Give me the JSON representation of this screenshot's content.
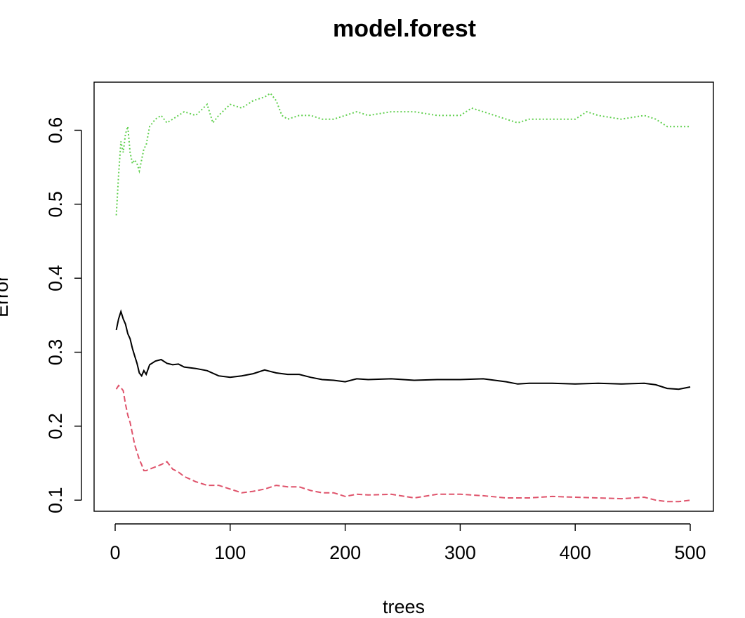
{
  "chart_data": {
    "type": "line",
    "title": "model.forest",
    "xlabel": "trees",
    "ylabel": "Error",
    "xlim": [
      0,
      500
    ],
    "ylim": [
      0.085,
      0.665
    ],
    "xticks": [
      0,
      100,
      200,
      300,
      400,
      500
    ],
    "yticks": [
      0.1,
      0.2,
      0.3,
      0.4,
      0.5,
      0.6
    ],
    "grid": false,
    "legend": "none",
    "series": [
      {
        "color": "#000000",
        "dash": "solid",
        "points": [
          [
            1,
            0.33
          ],
          [
            3,
            0.345
          ],
          [
            5,
            0.355
          ],
          [
            7,
            0.345
          ],
          [
            9,
            0.338
          ],
          [
            11,
            0.325
          ],
          [
            13,
            0.318
          ],
          [
            15,
            0.305
          ],
          [
            17,
            0.295
          ],
          [
            19,
            0.285
          ],
          [
            21,
            0.272
          ],
          [
            23,
            0.268
          ],
          [
            25,
            0.275
          ],
          [
            27,
            0.27
          ],
          [
            30,
            0.283
          ],
          [
            35,
            0.288
          ],
          [
            40,
            0.29
          ],
          [
            45,
            0.285
          ],
          [
            50,
            0.283
          ],
          [
            55,
            0.284
          ],
          [
            60,
            0.28
          ],
          [
            70,
            0.278
          ],
          [
            80,
            0.275
          ],
          [
            90,
            0.268
          ],
          [
            100,
            0.266
          ],
          [
            110,
            0.268
          ],
          [
            120,
            0.271
          ],
          [
            130,
            0.276
          ],
          [
            140,
            0.272
          ],
          [
            150,
            0.27
          ],
          [
            160,
            0.27
          ],
          [
            170,
            0.266
          ],
          [
            180,
            0.263
          ],
          [
            190,
            0.262
          ],
          [
            200,
            0.26
          ],
          [
            210,
            0.264
          ],
          [
            220,
            0.263
          ],
          [
            240,
            0.264
          ],
          [
            260,
            0.262
          ],
          [
            280,
            0.263
          ],
          [
            300,
            0.263
          ],
          [
            320,
            0.264
          ],
          [
            340,
            0.26
          ],
          [
            350,
            0.257
          ],
          [
            360,
            0.258
          ],
          [
            380,
            0.258
          ],
          [
            400,
            0.257
          ],
          [
            420,
            0.258
          ],
          [
            440,
            0.257
          ],
          [
            460,
            0.258
          ],
          [
            470,
            0.256
          ],
          [
            480,
            0.251
          ],
          [
            490,
            0.25
          ],
          [
            500,
            0.253
          ]
        ]
      },
      {
        "color": "#df536b",
        "dash": "dashed",
        "points": [
          [
            1,
            0.25
          ],
          [
            3,
            0.255
          ],
          [
            5,
            0.252
          ],
          [
            7,
            0.248
          ],
          [
            9,
            0.23
          ],
          [
            11,
            0.215
          ],
          [
            13,
            0.205
          ],
          [
            15,
            0.19
          ],
          [
            17,
            0.175
          ],
          [
            19,
            0.165
          ],
          [
            21,
            0.155
          ],
          [
            23,
            0.148
          ],
          [
            25,
            0.14
          ],
          [
            27,
            0.14
          ],
          [
            30,
            0.142
          ],
          [
            35,
            0.145
          ],
          [
            40,
            0.148
          ],
          [
            45,
            0.152
          ],
          [
            50,
            0.142
          ],
          [
            55,
            0.138
          ],
          [
            60,
            0.132
          ],
          [
            70,
            0.125
          ],
          [
            80,
            0.12
          ],
          [
            90,
            0.12
          ],
          [
            100,
            0.115
          ],
          [
            110,
            0.11
          ],
          [
            120,
            0.112
          ],
          [
            130,
            0.115
          ],
          [
            140,
            0.12
          ],
          [
            150,
            0.118
          ],
          [
            160,
            0.118
          ],
          [
            170,
            0.113
          ],
          [
            180,
            0.11
          ],
          [
            190,
            0.11
          ],
          [
            200,
            0.105
          ],
          [
            210,
            0.108
          ],
          [
            220,
            0.107
          ],
          [
            240,
            0.108
          ],
          [
            260,
            0.103
          ],
          [
            280,
            0.108
          ],
          [
            300,
            0.108
          ],
          [
            320,
            0.106
          ],
          [
            340,
            0.103
          ],
          [
            360,
            0.103
          ],
          [
            380,
            0.105
          ],
          [
            400,
            0.104
          ],
          [
            420,
            0.103
          ],
          [
            440,
            0.102
          ],
          [
            460,
            0.104
          ],
          [
            470,
            0.1
          ],
          [
            480,
            0.098
          ],
          [
            490,
            0.098
          ],
          [
            500,
            0.1
          ]
        ]
      },
      {
        "color": "#61d04f",
        "dash": "dotted",
        "points": [
          [
            1,
            0.485
          ],
          [
            3,
            0.54
          ],
          [
            5,
            0.585
          ],
          [
            7,
            0.57
          ],
          [
            9,
            0.595
          ],
          [
            11,
            0.605
          ],
          [
            13,
            0.57
          ],
          [
            15,
            0.555
          ],
          [
            17,
            0.56
          ],
          [
            19,
            0.555
          ],
          [
            21,
            0.545
          ],
          [
            23,
            0.56
          ],
          [
            25,
            0.575
          ],
          [
            27,
            0.58
          ],
          [
            30,
            0.605
          ],
          [
            35,
            0.615
          ],
          [
            40,
            0.62
          ],
          [
            45,
            0.61
          ],
          [
            50,
            0.615
          ],
          [
            55,
            0.62
          ],
          [
            60,
            0.625
          ],
          [
            70,
            0.62
          ],
          [
            80,
            0.635
          ],
          [
            85,
            0.61
          ],
          [
            90,
            0.62
          ],
          [
            100,
            0.635
          ],
          [
            110,
            0.63
          ],
          [
            120,
            0.64
          ],
          [
            130,
            0.645
          ],
          [
            135,
            0.65
          ],
          [
            140,
            0.64
          ],
          [
            145,
            0.62
          ],
          [
            150,
            0.615
          ],
          [
            160,
            0.62
          ],
          [
            170,
            0.62
          ],
          [
            180,
            0.615
          ],
          [
            190,
            0.615
          ],
          [
            200,
            0.62
          ],
          [
            210,
            0.625
          ],
          [
            220,
            0.62
          ],
          [
            240,
            0.625
          ],
          [
            260,
            0.625
          ],
          [
            280,
            0.62
          ],
          [
            300,
            0.62
          ],
          [
            310,
            0.63
          ],
          [
            320,
            0.625
          ],
          [
            340,
            0.615
          ],
          [
            350,
            0.61
          ],
          [
            360,
            0.615
          ],
          [
            380,
            0.615
          ],
          [
            400,
            0.615
          ],
          [
            410,
            0.625
          ],
          [
            420,
            0.62
          ],
          [
            440,
            0.615
          ],
          [
            460,
            0.62
          ],
          [
            470,
            0.615
          ],
          [
            480,
            0.605
          ],
          [
            490,
            0.605
          ],
          [
            500,
            0.605
          ]
        ]
      }
    ]
  }
}
